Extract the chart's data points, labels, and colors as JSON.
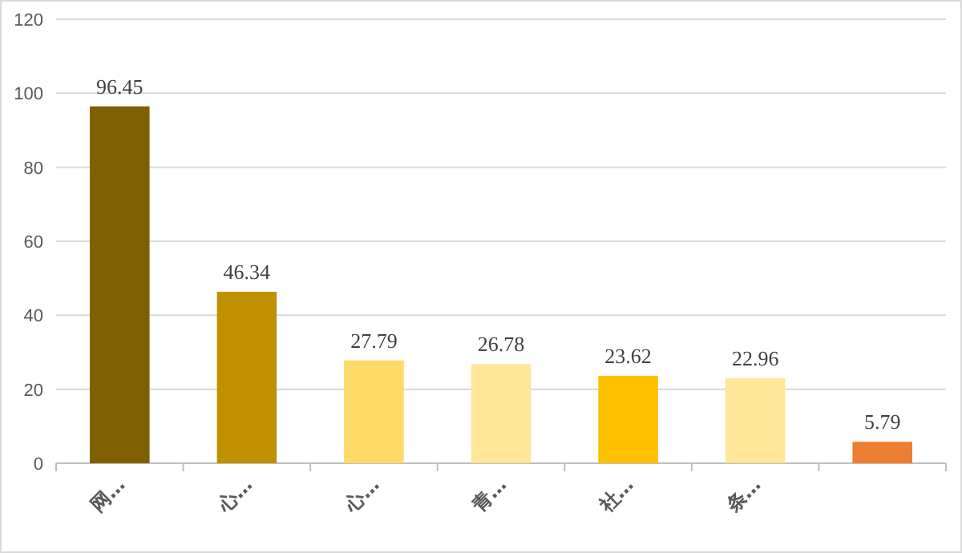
{
  "chart_data": {
    "type": "bar",
    "categories": [
      "网…",
      "心…",
      "心…",
      "青…",
      "社…",
      "条…",
      null
    ],
    "values": [
      96.45,
      46.34,
      27.79,
      26.78,
      23.62,
      22.96,
      5.79
    ],
    "colors": [
      "#7f6000",
      "#bf9000",
      "#ffd966",
      "#ffe699",
      "#ffc000",
      "#ffe699",
      "#ed7d31"
    ],
    "ylim": [
      0,
      120
    ],
    "yticks": [
      0,
      20,
      40,
      60,
      80,
      100,
      120
    ],
    "grid": "y",
    "data_labels": true
  }
}
